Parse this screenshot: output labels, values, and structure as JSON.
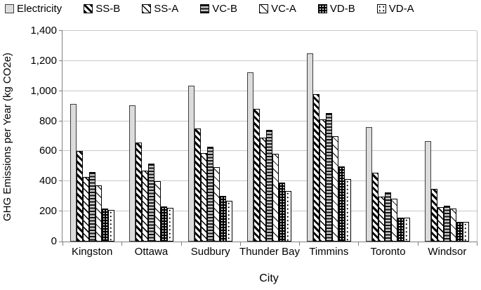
{
  "chart_data": {
    "type": "bar",
    "title": "",
    "xlabel": "City",
    "ylabel": "GHG Emissions per Year (kg CO2e)",
    "ylim": [
      0,
      1400
    ],
    "ytick_step": 200,
    "ytick_labels": [
      "0",
      "200",
      "400",
      "600",
      "800",
      "1,000",
      "1,200",
      "1,400"
    ],
    "grid": true,
    "legend_position": "top",
    "categories": [
      "Kingston",
      "Ottawa",
      "Sudbury",
      "Thunder Bay",
      "Timmins",
      "Toronto",
      "Windsor"
    ],
    "series": [
      {
        "name": "Electricity",
        "pattern": "electricity",
        "values": [
          915,
          905,
          1035,
          1125,
          1250,
          760,
          665
        ]
      },
      {
        "name": "SS-B",
        "pattern": "ss-b",
        "values": [
          600,
          660,
          750,
          880,
          980,
          455,
          350
        ]
      },
      {
        "name": "SS-A",
        "pattern": "ss-a",
        "values": [
          430,
          470,
          590,
          690,
          810,
          300,
          230
        ]
      },
      {
        "name": "VC-B",
        "pattern": "vc-b",
        "values": [
          460,
          520,
          630,
          740,
          855,
          325,
          240
        ]
      },
      {
        "name": "VC-A",
        "pattern": "vc-a",
        "values": [
          375,
          400,
          495,
          585,
          700,
          285,
          220
        ]
      },
      {
        "name": "VD-B",
        "pattern": "vd-b",
        "values": [
          220,
          235,
          305,
          390,
          500,
          160,
          130
        ]
      },
      {
        "name": "VD-A",
        "pattern": "vd-a",
        "values": [
          210,
          225,
          270,
          335,
          415,
          160,
          130
        ]
      }
    ],
    "colors": {
      "background": "#ffffff",
      "gridline": "#c9c9c9",
      "axis": "#808080",
      "bar_outline": "#000000",
      "electricity_fill": "#dcdcdc"
    }
  }
}
